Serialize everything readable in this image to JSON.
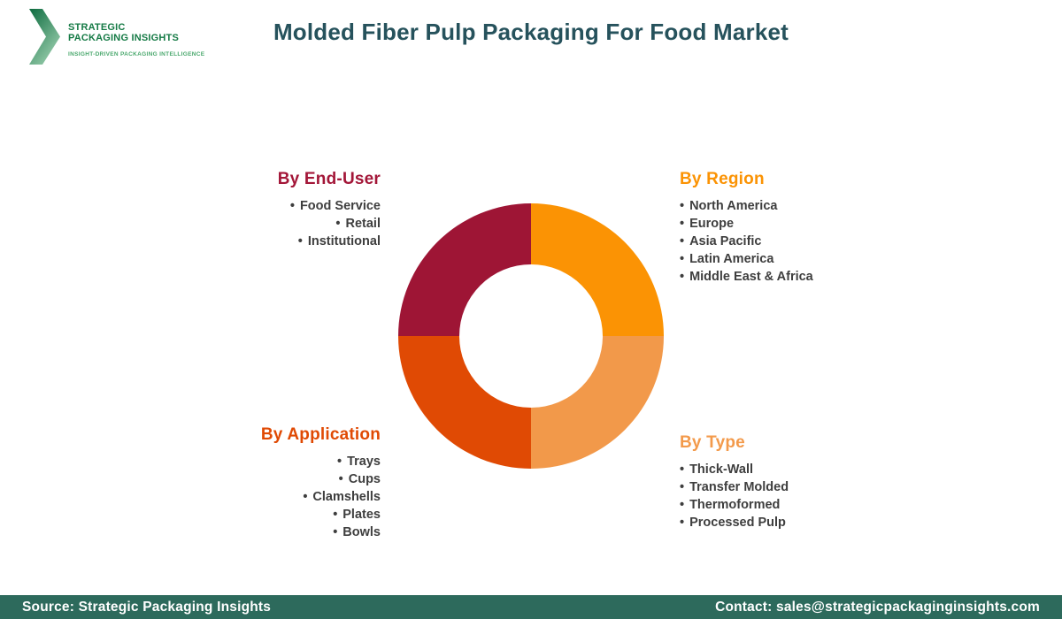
{
  "header": {
    "logo": {
      "line1": "STRATEGIC",
      "line2": "PACKAGING INSIGHTS",
      "tagline": "INSIGHT-DRIVEN PACKAGING INTELLIGENCE",
      "brand_green_dark": "#0d6b3f",
      "brand_green_light": "#9bcfae"
    },
    "title": "Molded Fiber Pulp Packaging For Food Market",
    "title_color": "#26525c"
  },
  "chart_data": {
    "type": "pie",
    "donut": true,
    "inner_radius_ratio": 0.54,
    "title": "Molded Fiber Pulp Packaging For Food Market",
    "data_labels": false,
    "legend_position": "around-quadrants",
    "segments": [
      {
        "heading": "By End-User",
        "quadrant": "top-left",
        "value": 25,
        "color": "#9e1535",
        "heading_color": "#a31638",
        "items": [
          "Food Service",
          "Retail",
          "Institutional"
        ]
      },
      {
        "heading": "By Region",
        "quadrant": "top-right",
        "value": 25,
        "color": "#fb9304",
        "heading_color": "#fb9304",
        "items": [
          "North America",
          "Europe",
          "Asia Pacific",
          "Latin America",
          "Middle East & Africa"
        ]
      },
      {
        "heading": "By Type",
        "quadrant": "bottom-right",
        "value": 25,
        "color": "#f2994a",
        "heading_color": "#f39a4b",
        "items": [
          "Thick-Wall",
          "Transfer Molded",
          "Thermoformed",
          "Processed Pulp"
        ]
      },
      {
        "heading": "By Application",
        "quadrant": "bottom-left",
        "value": 25,
        "color": "#e04a04",
        "heading_color": "#e04a04",
        "items": [
          "Trays",
          "Cups",
          "Clamshells",
          "Plates",
          "Bowls"
        ]
      }
    ]
  },
  "footer": {
    "source": "Source: Strategic Packaging Insights",
    "contact": "Contact: sales@strategicpackaginginsights.com",
    "background": "#2d6a5c"
  }
}
